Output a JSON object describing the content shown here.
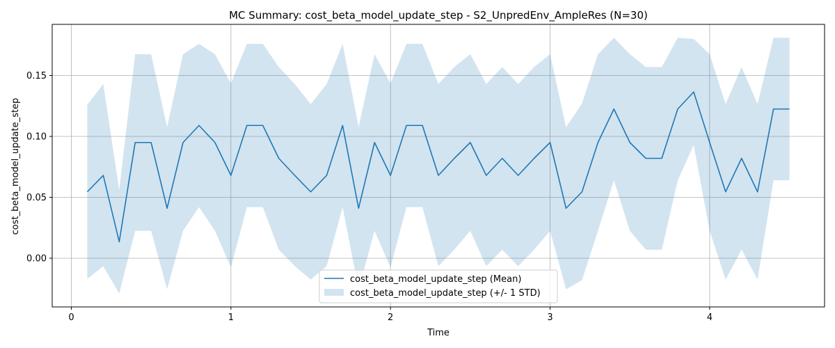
{
  "chart_data": {
    "type": "line",
    "title": "MC Summary: cost_beta_model_update_step - S2_UnpredEnv_AmpleRes (N=30)",
    "xlabel": "Time",
    "ylabel": "cost_beta_model_update_step",
    "xlim": [
      -0.12,
      4.72
    ],
    "ylim": [
      -0.04,
      0.192
    ],
    "xticks": [
      0,
      1,
      2,
      3,
      4
    ],
    "xtick_labels": [
      "0",
      "1",
      "2",
      "3",
      "4"
    ],
    "yticks": [
      0.0,
      0.05,
      0.1,
      0.15
    ],
    "ytick_labels": [
      "0.00",
      "0.05",
      "0.10",
      "0.15"
    ],
    "grid": true,
    "legend_position": "lower-center",
    "colors": {
      "line": "#1f77b4",
      "band": "#1f77b4",
      "band_opacity": 0.2,
      "grid": "#b0b0b0"
    },
    "x": [
      0.1,
      0.2,
      0.3,
      0.4,
      0.5,
      0.6,
      0.7,
      0.8,
      0.9,
      1.0,
      1.1,
      1.2,
      1.3,
      1.4,
      1.5,
      1.6,
      1.7,
      1.8,
      1.9,
      2.0,
      2.1,
      2.2,
      2.3,
      2.4,
      2.5,
      2.6,
      2.7,
      2.8,
      2.9,
      3.0,
      3.1,
      3.2,
      3.3,
      3.4,
      3.5,
      3.6,
      3.7,
      3.8,
      3.9,
      4.0,
      4.1,
      4.2,
      4.3,
      4.4,
      4.5
    ],
    "series": [
      {
        "name": "cost_beta_model_update_step (Mean)",
        "kind": "line",
        "values": [
          0.0545,
          0.068,
          0.0135,
          0.095,
          0.095,
          0.041,
          0.095,
          0.109,
          0.095,
          0.068,
          0.109,
          0.109,
          0.082,
          0.068,
          0.0545,
          0.068,
          0.109,
          0.041,
          0.095,
          0.068,
          0.109,
          0.109,
          0.068,
          0.082,
          0.095,
          0.068,
          0.082,
          0.068,
          0.082,
          0.095,
          0.041,
          0.0545,
          0.095,
          0.1225,
          0.095,
          0.082,
          0.082,
          0.1225,
          0.1365,
          0.095,
          0.0545,
          0.082,
          0.0545,
          0.1225,
          0.1225
        ]
      },
      {
        "name": "cost_beta_model_update_step (+/- 1 STD)",
        "kind": "band",
        "upper": [
          0.126,
          0.143,
          0.056,
          0.1675,
          0.1675,
          0.1075,
          0.1675,
          0.176,
          0.1675,
          0.1435,
          0.176,
          0.176,
          0.157,
          0.143,
          0.1265,
          0.143,
          0.176,
          0.1075,
          0.1675,
          0.1435,
          0.176,
          0.176,
          0.143,
          0.157,
          0.1675,
          0.143,
          0.157,
          0.143,
          0.157,
          0.1675,
          0.1075,
          0.127,
          0.1675,
          0.181,
          0.1675,
          0.157,
          0.157,
          0.181,
          0.18,
          0.1675,
          0.1265,
          0.157,
          0.1265,
          0.181,
          0.181
        ],
        "lower": [
          -0.017,
          -0.0065,
          -0.029,
          0.0225,
          0.0225,
          -0.0255,
          0.0225,
          0.042,
          0.0225,
          -0.0075,
          0.042,
          0.042,
          0.007,
          -0.0065,
          -0.0175,
          -0.0065,
          0.042,
          -0.0255,
          0.0225,
          -0.0075,
          0.042,
          0.042,
          -0.0065,
          0.007,
          0.0225,
          -0.0065,
          0.007,
          -0.0065,
          0.007,
          0.0225,
          -0.0255,
          -0.018,
          0.0225,
          0.064,
          0.0225,
          0.007,
          0.007,
          0.064,
          0.093,
          0.0225,
          -0.0175,
          0.007,
          -0.0175,
          0.064,
          0.064
        ]
      }
    ]
  }
}
